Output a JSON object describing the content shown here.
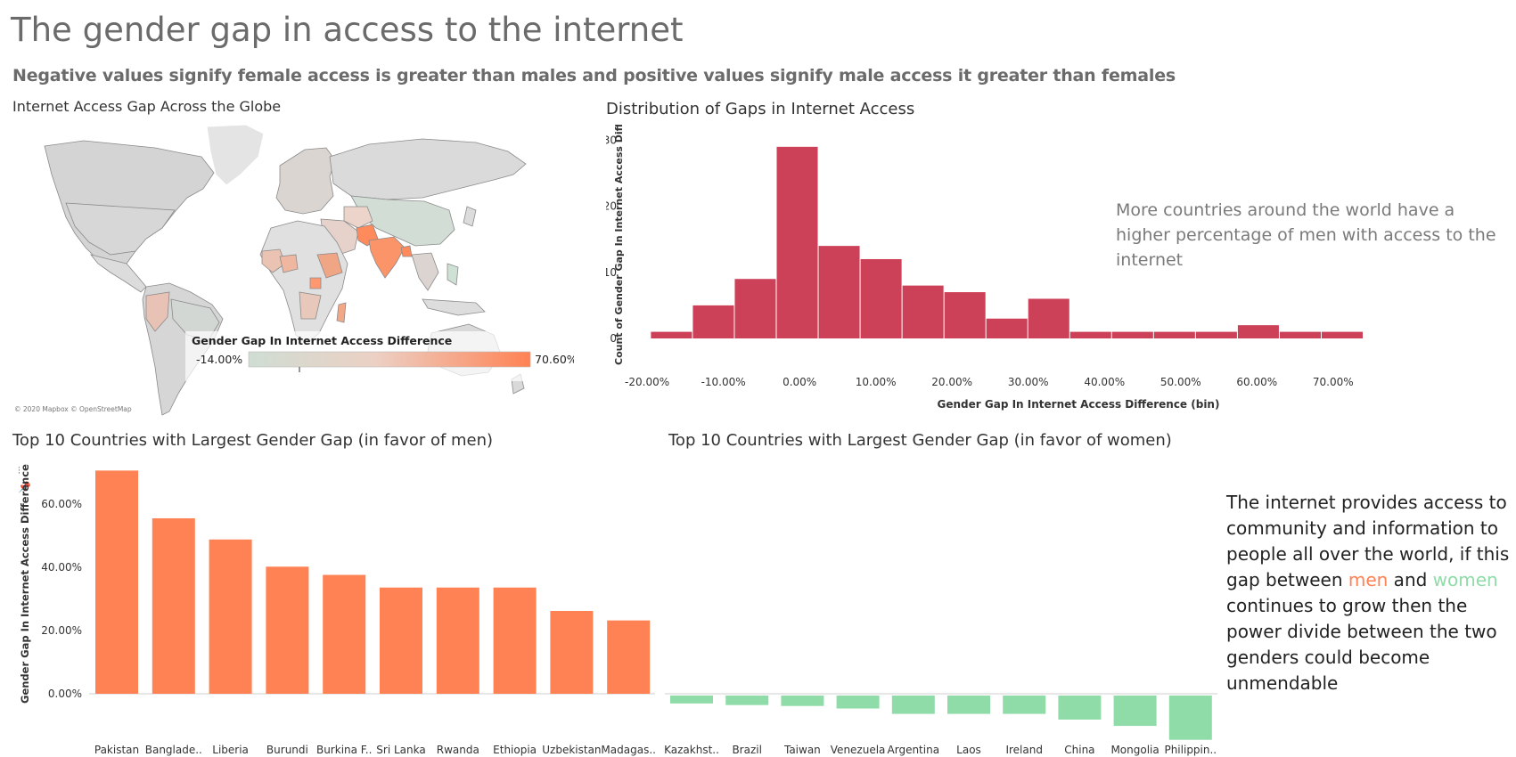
{
  "header": {
    "title": "The gender gap in access to the internet",
    "subtitle": "Negative values signify female access is greater than males and positive values signify male access it greater than females"
  },
  "map": {
    "title": "Internet Access Gap Across the Globe",
    "legend_title": "Gender Gap In Internet Access Difference",
    "legend_min": "-14.00%",
    "legend_max": "70.60%",
    "credit": "© 2020 Mapbox © OpenStreetMap",
    "colors": {
      "low": "#c9dbd0",
      "mid": "#e8d6cf",
      "high": "#ff8254",
      "land": "#d9d9d9",
      "water": "#ffffff"
    }
  },
  "histogram": {
    "title": "Distribution of Gaps in Internet Access",
    "annotation": "More countries around the world have a higher percentage of men with access to the internet"
  },
  "top_men": {
    "title": "Top 10 Countries with Largest Gender Gap (in favor of men)"
  },
  "top_women": {
    "title": "Top 10 Countries with Largest Gender Gap (in favor of women)"
  },
  "note": {
    "part1": "The internet provides access to community and information to people all over the world, if this gap between ",
    "men": "men",
    "and": " and ",
    "women": "women",
    "part2": " continues to grow then the power divide between the two genders could become unmendable"
  },
  "chart_data": [
    {
      "type": "bar",
      "name": "histogram",
      "title": "Distribution of Gaps in Internet Access",
      "xlabel": "Gender Gap In Internet Access Difference (bin)",
      "ylabel": "Count of Gender Gap In Internet Access Diff..",
      "bin_starts": [
        -19.5,
        -14,
        -8.5,
        -3,
        2.5,
        8,
        13.5,
        19,
        24.5,
        30,
        35.5,
        41,
        46.5,
        52,
        57.5,
        63,
        68.5
      ],
      "bin_width": 5.5,
      "values": [
        1,
        5,
        9,
        29,
        14,
        12,
        8,
        7,
        3,
        6,
        1,
        1,
        1,
        1,
        2,
        1,
        1
      ],
      "x_ticks": [
        "-20.00%",
        "-10.00%",
        "0.00%",
        "10.00%",
        "20.00%",
        "30.00%",
        "40.00%",
        "50.00%",
        "60.00%",
        "70.00%"
      ],
      "x_tick_values": [
        -20,
        -10,
        0,
        10,
        20,
        30,
        40,
        50,
        60,
        70
      ],
      "xlim": [
        -22,
        74
      ],
      "y_ticks": [
        "0",
        "10",
        "20",
        "30"
      ],
      "y_tick_values": [
        0,
        10,
        20,
        30
      ],
      "ylim": [
        0,
        31
      ],
      "color": "#cc4058",
      "grid": false
    },
    {
      "type": "bar",
      "name": "top_men",
      "title": "Top 10 Countries with Largest Gender Gap (in favor of men)",
      "ylabel": "Gender Gap In Internet Access Difference",
      "categories": [
        "Pakistan",
        "Banglade..",
        "Liberia",
        "Burundi",
        "Burkina F..",
        "Sri Lanka",
        "Rwanda",
        "Ethiopia",
        "Uzbekistan",
        "Madagas.."
      ],
      "values": [
        70.6,
        55.5,
        48.8,
        40.2,
        37.6,
        33.6,
        33.6,
        33.6,
        26.2,
        23.2
      ],
      "y_ticks": [
        "0.00%",
        "20.00%",
        "40.00%",
        "60.00%"
      ],
      "y_tick_values": [
        0,
        20,
        40,
        60
      ],
      "color": "#ff8254"
    },
    {
      "type": "bar",
      "name": "top_women",
      "title": "Top 10 Countries with Largest Gender Gap (in favor of women)",
      "categories": [
        "Kazakhst..",
        "Brazil",
        "Taiwan",
        "Venezuela",
        "Argentina",
        "Laos",
        "Ireland",
        "China",
        "Mongolia",
        "Philippin.."
      ],
      "values": [
        -2.5,
        -3.0,
        -3.3,
        -4.1,
        -5.8,
        -5.8,
        -5.8,
        -7.6,
        -9.6,
        -14.0
      ],
      "color": "#8fdca8"
    }
  ]
}
